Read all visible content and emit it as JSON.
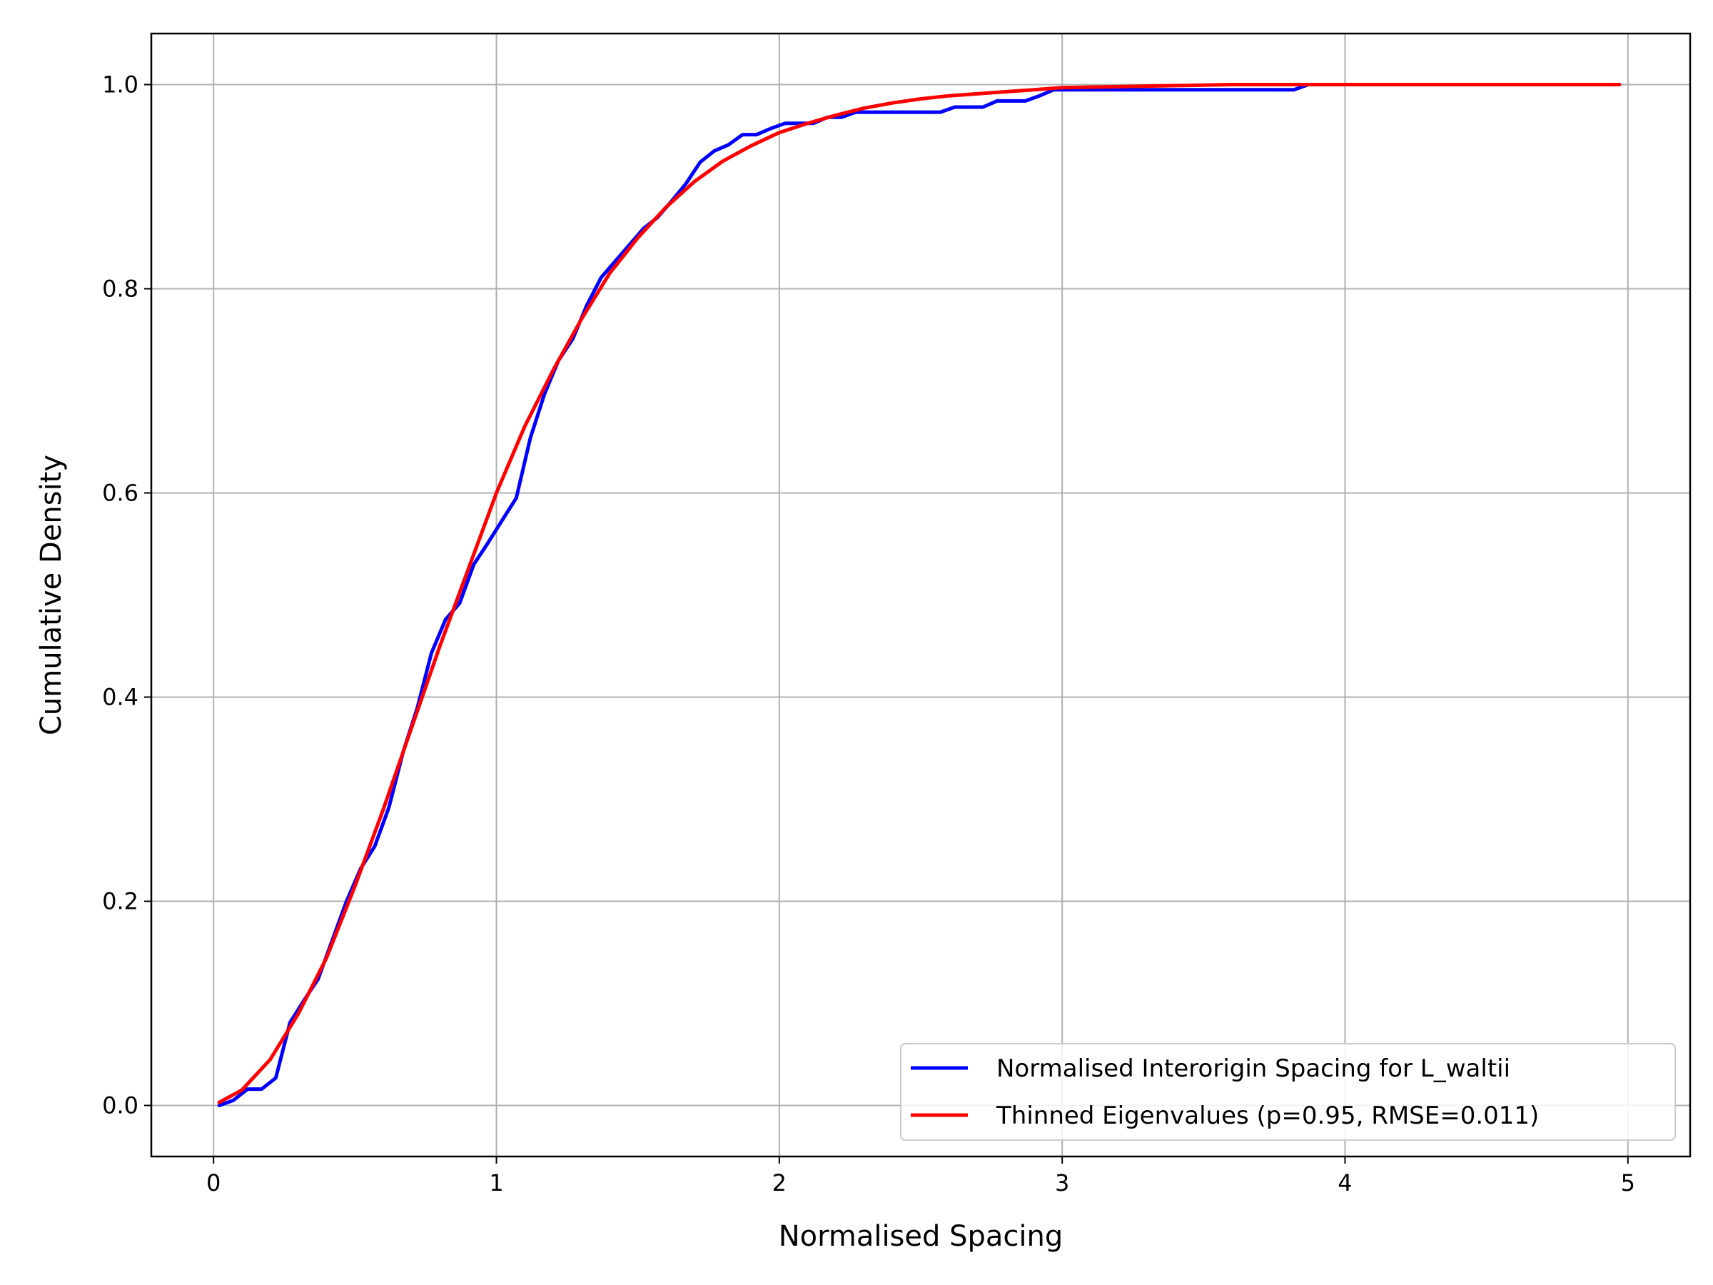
{
  "chart_data": {
    "type": "line",
    "title": "",
    "xlabel": "Normalised Spacing",
    "ylabel": "Cumulative Density",
    "xlim": [
      -0.22,
      5.22
    ],
    "ylim": [
      -0.05,
      1.05
    ],
    "xticks": [
      0,
      1,
      2,
      3,
      4,
      5
    ],
    "xtick_labels": [
      "0",
      "1",
      "2",
      "3",
      "4",
      "5"
    ],
    "yticks": [
      0.0,
      0.2,
      0.4,
      0.6,
      0.8,
      1.0
    ],
    "ytick_labels": [
      "0.0",
      "0.2",
      "0.4",
      "0.6",
      "0.8",
      "1.0"
    ],
    "grid": true,
    "legend_position": "lower-right",
    "series": [
      {
        "name": "Normalised Interorigin Spacing for L_waltii",
        "color": "#0000ff",
        "x": [
          0.02,
          0.07,
          0.12,
          0.17,
          0.22,
          0.27,
          0.32,
          0.37,
          0.42,
          0.47,
          0.52,
          0.57,
          0.62,
          0.67,
          0.72,
          0.77,
          0.82,
          0.87,
          0.92,
          0.97,
          1.02,
          1.07,
          1.12,
          1.17,
          1.22,
          1.27,
          1.32,
          1.37,
          1.42,
          1.47,
          1.52,
          1.57,
          1.62,
          1.67,
          1.72,
          1.77,
          1.82,
          1.87,
          1.92,
          1.97,
          2.02,
          2.07,
          2.12,
          2.17,
          2.22,
          2.27,
          2.32,
          2.37,
          2.42,
          2.47,
          2.52,
          2.57,
          2.62,
          2.67,
          2.72,
          2.77,
          2.82,
          2.87,
          2.92,
          2.97,
          3.02,
          3.07,
          3.12,
          3.17,
          3.22,
          3.27,
          3.32,
          3.37,
          3.42,
          3.47,
          3.52,
          3.57,
          3.62,
          3.67,
          3.72,
          3.77,
          3.82,
          3.87,
          3.92,
          3.97,
          4.1,
          4.3,
          4.5,
          4.7,
          4.97
        ],
        "y": [
          0.0,
          0.005,
          0.016,
          0.016,
          0.027,
          0.081,
          0.103,
          0.124,
          0.162,
          0.2,
          0.232,
          0.254,
          0.292,
          0.346,
          0.389,
          0.443,
          0.476,
          0.492,
          0.53,
          0.551,
          0.573,
          0.595,
          0.654,
          0.697,
          0.73,
          0.751,
          0.784,
          0.811,
          0.827,
          0.843,
          0.859,
          0.87,
          0.886,
          0.903,
          0.924,
          0.935,
          0.941,
          0.951,
          0.951,
          0.957,
          0.962,
          0.962,
          0.962,
          0.968,
          0.968,
          0.973,
          0.973,
          0.973,
          0.973,
          0.973,
          0.973,
          0.973,
          0.978,
          0.978,
          0.978,
          0.984,
          0.984,
          0.984,
          0.989,
          0.995,
          0.995,
          0.995,
          0.995,
          0.995,
          0.995,
          0.995,
          0.995,
          0.995,
          0.995,
          0.995,
          0.995,
          0.995,
          0.995,
          0.995,
          0.995,
          0.995,
          0.995,
          1.0,
          1.0,
          1.0,
          1.0,
          1.0,
          1.0,
          1.0,
          1.0
        ]
      },
      {
        "name": "Thinned Eigenvalues (p=0.95, RMSE=0.011)",
        "color": "#ff0000",
        "x": [
          0.02,
          0.1,
          0.2,
          0.3,
          0.4,
          0.5,
          0.6,
          0.7,
          0.8,
          0.9,
          1.0,
          1.1,
          1.2,
          1.3,
          1.4,
          1.5,
          1.6,
          1.7,
          1.8,
          1.9,
          2.0,
          2.1,
          2.2,
          2.3,
          2.4,
          2.5,
          2.6,
          2.7,
          2.8,
          2.9,
          3.0,
          3.2,
          3.4,
          3.6,
          3.8,
          4.0,
          4.2,
          4.4,
          4.6,
          4.8,
          4.97
        ],
        "y": [
          0.003,
          0.015,
          0.045,
          0.09,
          0.145,
          0.215,
          0.29,
          0.37,
          0.45,
          0.525,
          0.6,
          0.665,
          0.72,
          0.77,
          0.815,
          0.85,
          0.88,
          0.905,
          0.925,
          0.94,
          0.953,
          0.962,
          0.97,
          0.977,
          0.982,
          0.986,
          0.989,
          0.991,
          0.993,
          0.995,
          0.997,
          0.998,
          0.999,
          1.0,
          1.0,
          1.0,
          1.0,
          1.0,
          1.0,
          1.0,
          1.0
        ]
      }
    ]
  }
}
